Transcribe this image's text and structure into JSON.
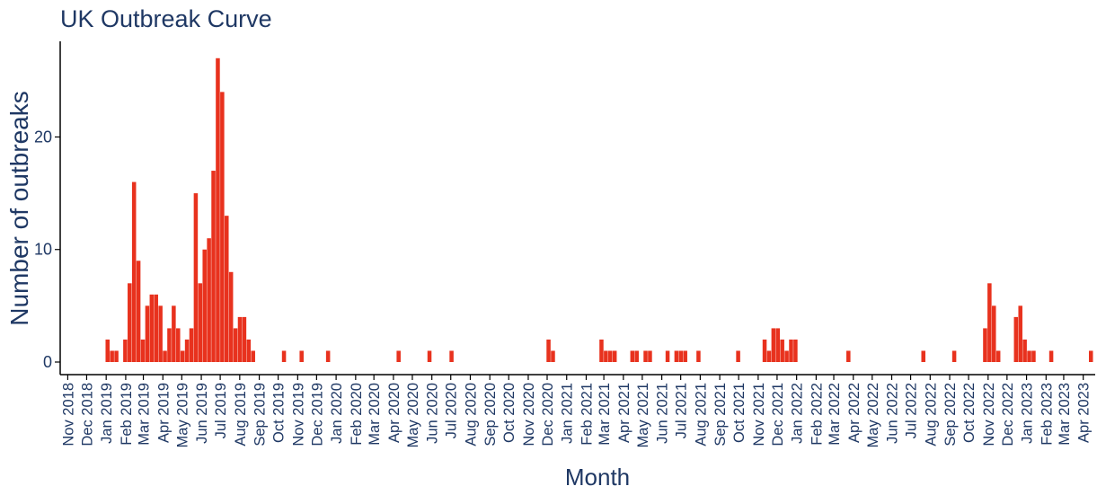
{
  "chart_data": {
    "type": "bar",
    "title": "UK Outbreak Curve",
    "xlabel": "Month",
    "ylabel": "Number of outbreaks",
    "ylim": [
      0,
      28.5
    ],
    "yticks": [
      0,
      10,
      20
    ],
    "grid": false,
    "legend": "none",
    "bar_color": "#e8321e",
    "axis_text_color": "#1f3864",
    "x_range": [
      "2018-10-20",
      "2023-04-20"
    ],
    "month_labels": [
      "Nov 2018",
      "Dec 2018",
      "Jan 2019",
      "Feb 2019",
      "Mar 2019",
      "Apr 2019",
      "May 2019",
      "Jun 2019",
      "Jul 2019",
      "Aug 2019",
      "Sep 2019",
      "Oct 2019",
      "Nov 2019",
      "Dec 2019",
      "Jan 2020",
      "Feb 2020",
      "Mar 2020",
      "Apr 2020",
      "May 2020",
      "Jun 2020",
      "Jul 2020",
      "Aug 2020",
      "Sep 2020",
      "Oct 2020",
      "Nov 2020",
      "Dec 2020",
      "Jan 2021",
      "Feb 2021",
      "Mar 2021",
      "Apr 2021",
      "May 2021",
      "Jun 2021",
      "Jul 2021",
      "Aug 2021",
      "Sep 2021",
      "Oct 2021",
      "Nov 2021",
      "Dec 2021",
      "Jan 2022",
      "Feb 2022",
      "Mar 2022",
      "Apr 2022",
      "May 2022",
      "Jun 2022",
      "Jul 2022",
      "Aug 2022",
      "Sep 2022",
      "Oct 2022",
      "Nov 2022",
      "Dec 2022",
      "Jan 2023",
      "Feb 2023",
      "Mar 2023",
      "Apr 2023"
    ],
    "bars": [
      {
        "x": "2018-12-31",
        "value": 2
      },
      {
        "x": "2019-01-07",
        "value": 1
      },
      {
        "x": "2019-01-14",
        "value": 1
      },
      {
        "x": "2019-01-28",
        "value": 2
      },
      {
        "x": "2019-02-04",
        "value": 7
      },
      {
        "x": "2019-02-11",
        "value": 16
      },
      {
        "x": "2019-02-18",
        "value": 9
      },
      {
        "x": "2019-02-25",
        "value": 2
      },
      {
        "x": "2019-03-04",
        "value": 5
      },
      {
        "x": "2019-03-11",
        "value": 6
      },
      {
        "x": "2019-03-18",
        "value": 6
      },
      {
        "x": "2019-03-25",
        "value": 5
      },
      {
        "x": "2019-04-01",
        "value": 1
      },
      {
        "x": "2019-04-08",
        "value": 3
      },
      {
        "x": "2019-04-15",
        "value": 5
      },
      {
        "x": "2019-04-22",
        "value": 3
      },
      {
        "x": "2019-04-29",
        "value": 1
      },
      {
        "x": "2019-05-06",
        "value": 2
      },
      {
        "x": "2019-05-13",
        "value": 3
      },
      {
        "x": "2019-05-20",
        "value": 15
      },
      {
        "x": "2019-05-27",
        "value": 7
      },
      {
        "x": "2019-06-03",
        "value": 10
      },
      {
        "x": "2019-06-10",
        "value": 11
      },
      {
        "x": "2019-06-17",
        "value": 17
      },
      {
        "x": "2019-06-24",
        "value": 27
      },
      {
        "x": "2019-07-01",
        "value": 24
      },
      {
        "x": "2019-07-08",
        "value": 13
      },
      {
        "x": "2019-07-15",
        "value": 8
      },
      {
        "x": "2019-07-22",
        "value": 3
      },
      {
        "x": "2019-07-29",
        "value": 4
      },
      {
        "x": "2019-08-05",
        "value": 4
      },
      {
        "x": "2019-08-12",
        "value": 2
      },
      {
        "x": "2019-08-19",
        "value": 1
      },
      {
        "x": "2019-10-07",
        "value": 1
      },
      {
        "x": "2019-11-04",
        "value": 1
      },
      {
        "x": "2019-12-16",
        "value": 1
      },
      {
        "x": "2020-04-06",
        "value": 1
      },
      {
        "x": "2020-05-25",
        "value": 1
      },
      {
        "x": "2020-06-29",
        "value": 1
      },
      {
        "x": "2020-11-30",
        "value": 2
      },
      {
        "x": "2020-12-07",
        "value": 1
      },
      {
        "x": "2021-02-22",
        "value": 2
      },
      {
        "x": "2021-03-01",
        "value": 1
      },
      {
        "x": "2021-03-08",
        "value": 1
      },
      {
        "x": "2021-03-15",
        "value": 1
      },
      {
        "x": "2021-04-12",
        "value": 1
      },
      {
        "x": "2021-04-19",
        "value": 1
      },
      {
        "x": "2021-05-03",
        "value": 1
      },
      {
        "x": "2021-05-10",
        "value": 1
      },
      {
        "x": "2021-06-07",
        "value": 1
      },
      {
        "x": "2021-06-21",
        "value": 1
      },
      {
        "x": "2021-06-28",
        "value": 1
      },
      {
        "x": "2021-07-05",
        "value": 1
      },
      {
        "x": "2021-07-26",
        "value": 1
      },
      {
        "x": "2021-09-27",
        "value": 1
      },
      {
        "x": "2021-11-08",
        "value": 2
      },
      {
        "x": "2021-11-15",
        "value": 1
      },
      {
        "x": "2021-11-22",
        "value": 3
      },
      {
        "x": "2021-11-29",
        "value": 3
      },
      {
        "x": "2021-12-06",
        "value": 2
      },
      {
        "x": "2021-12-13",
        "value": 1
      },
      {
        "x": "2021-12-20",
        "value": 2
      },
      {
        "x": "2021-12-27",
        "value": 2
      },
      {
        "x": "2022-03-21",
        "value": 1
      },
      {
        "x": "2022-07-18",
        "value": 1
      },
      {
        "x": "2022-09-05",
        "value": 1
      },
      {
        "x": "2022-10-24",
        "value": 3
      },
      {
        "x": "2022-10-31",
        "value": 7
      },
      {
        "x": "2022-11-07",
        "value": 5
      },
      {
        "x": "2022-11-14",
        "value": 1
      },
      {
        "x": "2022-12-12",
        "value": 4
      },
      {
        "x": "2022-12-19",
        "value": 5
      },
      {
        "x": "2022-12-26",
        "value": 2
      },
      {
        "x": "2023-01-02",
        "value": 1
      },
      {
        "x": "2023-01-09",
        "value": 1
      },
      {
        "x": "2023-02-06",
        "value": 1
      },
      {
        "x": "2023-04-10",
        "value": 1
      }
    ]
  }
}
